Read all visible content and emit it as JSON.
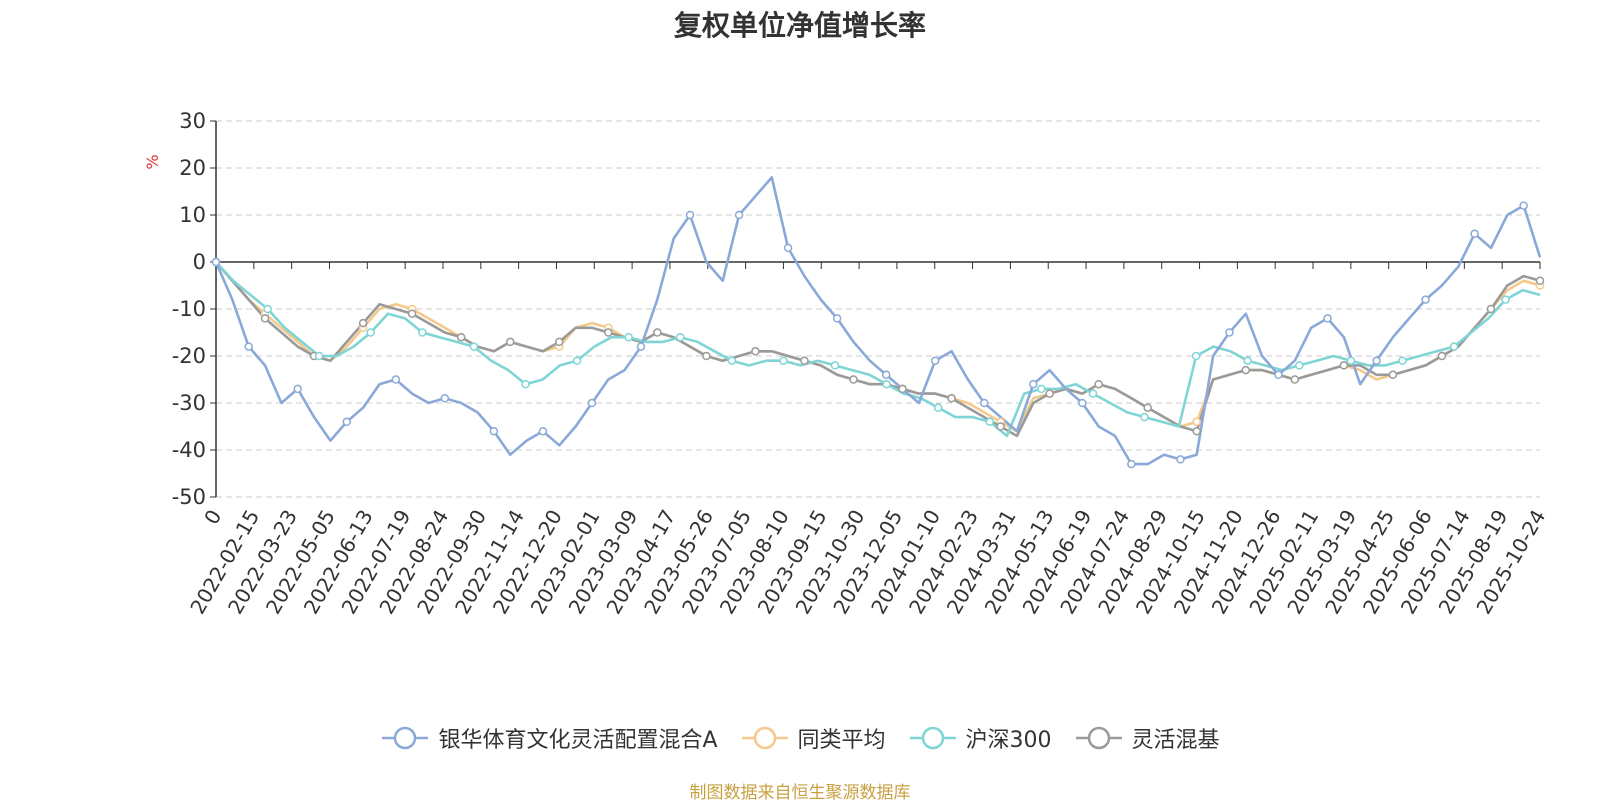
{
  "title": "复权单位净值增长率",
  "source": "制图数据来自恒生聚源数据库",
  "colors": {
    "fund": "#8aa9d8",
    "peer_avg": "#f5c98a",
    "hs300": "#7fd5d5",
    "flex_mix": "#9a9a9a",
    "axis_unit": "#e0312a",
    "source_text": "#c8a040",
    "grid": "#cccccc"
  },
  "chart_data": {
    "type": "line",
    "title": "复权单位净值增长率",
    "ylabel": "%",
    "ylim": [
      -50,
      30
    ],
    "yticks": [
      30,
      20,
      10,
      0,
      -10,
      -20,
      -30,
      -40,
      -50
    ],
    "grid": true,
    "legend_position": "bottom",
    "x_tick_labels": [
      "0",
      "2022-02-15",
      "2022-03-23",
      "2022-05-05",
      "2022-06-13",
      "2022-07-19",
      "2022-08-24",
      "2022-09-30",
      "2022-11-14",
      "2022-12-20",
      "2023-02-01",
      "2023-03-09",
      "2023-04-17",
      "2023-05-26",
      "2023-07-05",
      "2023-08-10",
      "2023-09-15",
      "2023-10-30",
      "2023-12-05",
      "2024-01-10",
      "2024-02-23",
      "2024-03-31",
      "2024-05-13",
      "2024-06-19",
      "2024-07-24",
      "2024-08-29",
      "2024-10-15",
      "2024-11-20",
      "2024-12-26",
      "2025-02-11",
      "2025-03-19",
      "2025-04-25",
      "2025-06-06",
      "2025-07-14",
      "2025-08-19",
      "2025-10-24"
    ],
    "series": [
      {
        "name": "银华体育文化灵活配置混合A",
        "color_key": "fund",
        "values": [
          0,
          -8,
          -18,
          -22,
          -30,
          -27,
          -33,
          -38,
          -34,
          -31,
          -26,
          -25,
          -28,
          -30,
          -29,
          -30,
          -32,
          -36,
          -41,
          -38,
          -36,
          -39,
          -35,
          -30,
          -25,
          -23,
          -18,
          -8,
          5,
          10,
          0,
          -4,
          10,
          14,
          18,
          3,
          -3,
          -8,
          -12,
          -17,
          -21,
          -24,
          -27,
          -30,
          -21,
          -19,
          -25,
          -30,
          -33,
          -36,
          -26,
          -23,
          -27,
          -30,
          -35,
          -37,
          -43,
          -43,
          -41,
          -42,
          -41,
          -20,
          -15,
          -11,
          -20,
          -24,
          -21,
          -14,
          -12,
          -16,
          -26,
          -21,
          -16,
          -12,
          -8,
          -5,
          -1,
          6,
          3,
          10,
          12,
          1
        ],
        "markers": [
          0,
          2,
          5,
          8,
          11,
          14,
          17,
          20,
          23,
          26,
          29,
          32,
          35,
          38,
          41,
          44,
          47,
          50,
          53,
          56,
          59,
          62,
          65,
          68,
          71,
          74,
          77,
          80
        ]
      },
      {
        "name": "同类平均",
        "color_key": "peer_avg",
        "values": [
          0,
          -4,
          -8,
          -11,
          -14,
          -17,
          -20,
          -21,
          -18,
          -14,
          -10,
          -9,
          -10,
          -12,
          -14,
          -16,
          -18,
          -19,
          -17,
          -18,
          -19,
          -18,
          -14,
          -13,
          -14,
          -16,
          -17,
          -15,
          -16,
          -18,
          -20,
          -21,
          -20,
          -19,
          -19,
          -20,
          -21,
          -22,
          -24,
          -25,
          -26,
          -26,
          -27,
          -28,
          -28,
          -29,
          -30,
          -32,
          -34,
          -36,
          -29,
          -28,
          -27,
          -28,
          -26,
          -27,
          -29,
          -31,
          -33,
          -35,
          -34,
          -25,
          -24,
          -23,
          -23,
          -24,
          -25,
          -24,
          -23,
          -22,
          -23,
          -25,
          -24,
          -23,
          -22,
          -20,
          -18,
          -14,
          -10,
          -6,
          -4,
          -5
        ],
        "markers": [
          0,
          3,
          6,
          9,
          12,
          15,
          18,
          21,
          24,
          27,
          30,
          33,
          36,
          39,
          42,
          45,
          48,
          51,
          54,
          57,
          60,
          63,
          66,
          69,
          72,
          75,
          78,
          81
        ]
      },
      {
        "name": "沪深300",
        "color_key": "hs300",
        "values": [
          0,
          -4,
          -7,
          -10,
          -14,
          -17,
          -20,
          -20,
          -18,
          -15,
          -11,
          -12,
          -15,
          -16,
          -17,
          -18,
          -21,
          -23,
          -26,
          -25,
          -22,
          -21,
          -18,
          -16,
          -16,
          -17,
          -17,
          -16,
          -17,
          -19,
          -21,
          -22,
          -21,
          -21,
          -22,
          -21,
          -22,
          -23,
          -24,
          -26,
          -28,
          -29,
          -31,
          -33,
          -33,
          -34,
          -37,
          -28,
          -27,
          -27,
          -26,
          -28,
          -30,
          -32,
          -33,
          -34,
          -35,
          -20,
          -18,
          -19,
          -21,
          -22,
          -23,
          -22,
          -21,
          -20,
          -21,
          -22,
          -22,
          -21,
          -20,
          -19,
          -18,
          -15,
          -12,
          -8,
          -6,
          -7
        ],
        "markers": [
          0,
          3,
          6,
          9,
          12,
          15,
          18,
          21,
          24,
          27,
          30,
          33,
          36,
          39,
          42,
          45,
          48,
          51,
          54,
          57,
          60,
          63,
          66,
          69,
          72,
          75
        ]
      },
      {
        "name": "灵活混基",
        "color_key": "flex_mix",
        "values": [
          0,
          -4,
          -8,
          -12,
          -15,
          -18,
          -20,
          -21,
          -17,
          -13,
          -9,
          -10,
          -11,
          -13,
          -15,
          -16,
          -18,
          -19,
          -17,
          -18,
          -19,
          -17,
          -14,
          -14,
          -15,
          -16,
          -17,
          -15,
          -16,
          -18,
          -20,
          -21,
          -20,
          -19,
          -19,
          -20,
          -21,
          -22,
          -24,
          -25,
          -26,
          -26,
          -27,
          -28,
          -28,
          -29,
          -31,
          -33,
          -35,
          -37,
          -30,
          -28,
          -27,
          -28,
          -26,
          -27,
          -29,
          -31,
          -33,
          -35,
          -36,
          -25,
          -24,
          -23,
          -23,
          -24,
          -25,
          -24,
          -23,
          -22,
          -22,
          -24,
          -24,
          -23,
          -22,
          -20,
          -18,
          -14,
          -10,
          -5,
          -3,
          -4
        ],
        "markers": [
          0,
          3,
          6,
          9,
          12,
          15,
          18,
          21,
          24,
          27,
          30,
          33,
          36,
          39,
          42,
          45,
          48,
          51,
          54,
          57,
          60,
          63,
          66,
          69,
          72,
          75,
          78,
          81
        ]
      }
    ]
  }
}
